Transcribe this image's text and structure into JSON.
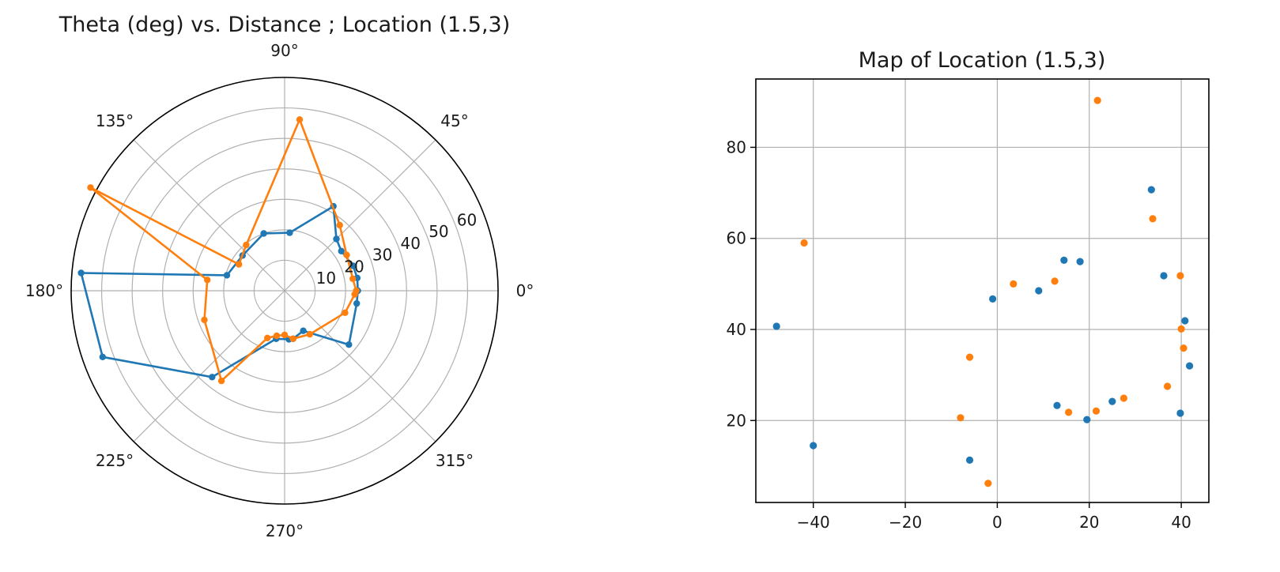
{
  "colors": {
    "series1": "#1f77b4",
    "series2": "#ff7f0e",
    "grid": "#b0b0b0"
  },
  "chart_data": [
    {
      "type": "polar-line",
      "title": "Theta (deg) vs. Distance ; Location (1.5,3)",
      "theta_ticks": [
        "0°",
        "45°",
        "90°",
        "135°",
        "180°",
        "225°",
        "270°",
        "315°"
      ],
      "r_ticks": [
        "10",
        "20",
        "30",
        "40",
        "50",
        "60"
      ],
      "r_tick_values": [
        10,
        20,
        30,
        40,
        50,
        60
      ],
      "r_grid_values": [
        10,
        20,
        30,
        40,
        50,
        60
      ],
      "rlim": [
        0,
        70
      ],
      "grid": true,
      "series": [
        {
          "points": [
            {
              "theta": 0,
              "r": 24.0
            },
            {
              "theta": 10,
              "r": 24.2
            },
            {
              "theta": 20,
              "r": 23.9
            },
            {
              "theta": 35,
              "r": 22.7
            },
            {
              "theta": 45,
              "r": 24.0
            },
            {
              "theta": 60,
              "r": 32.0
            },
            {
              "theta": 85,
              "r": 19.1
            },
            {
              "theta": 110,
              "r": 20.0
            },
            {
              "theta": 140,
              "r": 18.0
            },
            {
              "theta": 165,
              "r": 19.6
            },
            {
              "theta": 175,
              "r": 67.0
            },
            {
              "theta": 200,
              "r": 63.5
            },
            {
              "theta": 230,
              "r": 37.0
            },
            {
              "theta": 260,
              "r": 16.0
            },
            {
              "theta": 275,
              "r": 16.0
            },
            {
              "theta": 280,
              "r": 16.0
            },
            {
              "theta": 295,
              "r": 14.5
            },
            {
              "theta": 320,
              "r": 27.5
            },
            {
              "theta": 350,
              "r": 24.0
            }
          ]
        },
        {
          "points": [
            {
              "theta": 0,
              "r": 23.5
            },
            {
              "theta": 10,
              "r": 22.7
            },
            {
              "theta": 30,
              "r": 23.5
            },
            {
              "theta": 50,
              "r": 28.1
            },
            {
              "theta": 85,
              "r": 56.4
            },
            {
              "theta": 130,
              "r": 19.6
            },
            {
              "theta": 150,
              "r": 17.3
            },
            {
              "theta": 152,
              "r": 72.1
            },
            {
              "theta": 172,
              "r": 25.6
            },
            {
              "theta": 200,
              "r": 28.0
            },
            {
              "theta": 235,
              "r": 36.1
            },
            {
              "theta": 250,
              "r": 16.5
            },
            {
              "theta": 260,
              "r": 15.0
            },
            {
              "theta": 270,
              "r": 14.5
            },
            {
              "theta": 280,
              "r": 16.0
            },
            {
              "theta": 300,
              "r": 16.5
            },
            {
              "theta": 340,
              "r": 21.1
            },
            {
              "theta": 357,
              "r": 23.0
            }
          ]
        }
      ]
    },
    {
      "type": "scatter",
      "title": "Map of Location (1.5,3)",
      "xlim": [
        -52.5,
        46
      ],
      "ylim": [
        2,
        95
      ],
      "x_ticks": [
        -40,
        -20,
        0,
        20,
        40
      ],
      "x_tick_labels": [
        "−40",
        "−20",
        "0",
        "20",
        "40"
      ],
      "y_ticks": [
        20,
        40,
        60,
        80
      ],
      "y_tick_labels": [
        "20",
        "40",
        "60",
        "80"
      ],
      "grid": true,
      "series": [
        {
          "x": [
            -48,
            -40,
            -6,
            -1,
            9,
            13,
            14.5,
            18,
            19.5,
            25,
            33.5,
            36.2,
            39.8,
            40.8,
            41.8
          ],
          "y": [
            40.7,
            14.5,
            11.3,
            46.7,
            48.5,
            23.3,
            55.2,
            54.9,
            20.2,
            24.2,
            70.7,
            51.8,
            21.6,
            41.9,
            32.0
          ]
        },
        {
          "x": [
            -42,
            -8,
            -6,
            -2,
            3.5,
            12.5,
            15.5,
            21.5,
            21.8,
            27.5,
            33.8,
            37,
            39.8,
            40,
            40.5
          ],
          "y": [
            59.0,
            20.6,
            33.9,
            6.2,
            50.0,
            50.6,
            21.8,
            22.1,
            90.3,
            24.9,
            64.3,
            27.5,
            51.8,
            40.1,
            35.9
          ]
        }
      ]
    }
  ]
}
